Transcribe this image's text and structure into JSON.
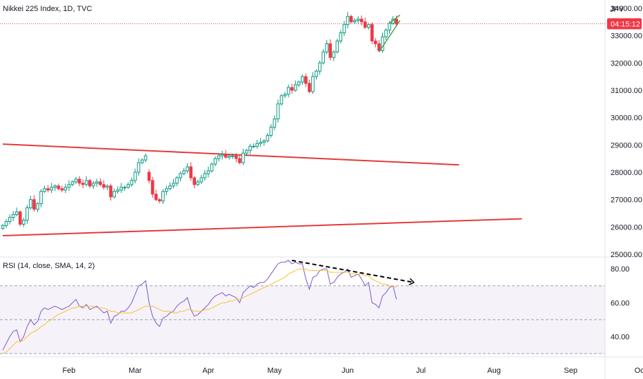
{
  "header": {
    "symbol_title": "Nikkei 225 Index, 1D, TVC",
    "currency": "JPY",
    "rsi_title": "RSI (14, close, SMA, 14, 2)"
  },
  "price_badge": {
    "value": "04:15:12",
    "level": 33430,
    "color": "#f23645"
  },
  "colors": {
    "up": "#089981",
    "down": "#f23645",
    "trendline": "#e53935",
    "wedge": "#43a047",
    "rsi_line": "#7e57c2",
    "rsi_ma": "#fbc02d",
    "rsi_band": "#7e57c2",
    "divergence": "#000000"
  },
  "chart_data": [
    {
      "type": "candlestick",
      "title": "Nikkei 225 Index, 1D, TVC",
      "ylim": [
        24900,
        34300
      ],
      "y_ticks": [
        "25000.00",
        "26000.00",
        "27000.00",
        "28000.00",
        "29000.00",
        "30000.00",
        "31000.00",
        "32000.00",
        "33000.00",
        "34000.00"
      ],
      "x_ticks": [
        "Feb",
        "Mar",
        "Apr",
        "May",
        "Jun",
        "Jul",
        "Aug",
        "Sep",
        "Oct"
      ],
      "candles_close": [
        26050,
        26200,
        26350,
        26450,
        26550,
        26100,
        26250,
        26700,
        27000,
        26650,
        26850,
        27300,
        27400,
        27350,
        27450,
        27500,
        27400,
        27350,
        27450,
        27550,
        27650,
        27750,
        27600,
        27550,
        27700,
        27500,
        27600,
        27650,
        27550,
        27450,
        27500,
        27100,
        27300,
        27350,
        27450,
        27450,
        27550,
        27700,
        28000,
        28350,
        28450,
        28600,
        27700,
        27200,
        27000,
        26950,
        27300,
        27400,
        27500,
        27600,
        27800,
        27950,
        28050,
        28200,
        27800,
        27550,
        27650,
        27800,
        27950,
        28050,
        28300,
        28500,
        28600,
        28650,
        28550,
        28600,
        28600,
        28500,
        28350,
        28700,
        28800,
        28950,
        28950,
        29050,
        29100,
        29150,
        29350,
        29650,
        29950,
        30500,
        30800,
        30850,
        31100,
        31000,
        31200,
        31300,
        31500,
        31250,
        30950,
        31500,
        31700,
        32000,
        32400,
        32700,
        32200,
        32400,
        32800,
        33100,
        33400,
        33700,
        33500,
        33550,
        33600,
        33500,
        33300,
        33400,
        32800,
        32700,
        32450,
        32950,
        33200,
        33450,
        33600,
        33420
      ],
      "candles_open": [
        25950,
        26050,
        26200,
        26350,
        26450,
        26550,
        26100,
        26250,
        26700,
        27000,
        26650,
        26850,
        27300,
        27400,
        27350,
        27450,
        27500,
        27400,
        27350,
        27450,
        27550,
        27650,
        27750,
        27600,
        27550,
        27700,
        27500,
        27600,
        27650,
        27550,
        27450,
        27500,
        27100,
        27300,
        27350,
        27450,
        27450,
        27550,
        27700,
        28000,
        28350,
        28450,
        28000,
        27700,
        27200,
        27000,
        26950,
        27300,
        27400,
        27500,
        27600,
        27800,
        27950,
        28050,
        28200,
        27800,
        27550,
        27650,
        27800,
        27950,
        28050,
        28300,
        28500,
        28600,
        28650,
        28550,
        28600,
        28600,
        28500,
        28350,
        28700,
        28800,
        28950,
        28950,
        29050,
        29100,
        29150,
        29350,
        29650,
        29950,
        30500,
        30800,
        30850,
        31100,
        31000,
        31200,
        31300,
        31500,
        31250,
        30950,
        31500,
        31700,
        32000,
        32400,
        32700,
        32200,
        32400,
        32800,
        33100,
        33400,
        33700,
        33500,
        33550,
        33600,
        33500,
        33300,
        33400,
        32800,
        32700,
        32450,
        32950,
        33200,
        33450,
        33600
      ],
      "annotations": [
        {
          "type": "trendline",
          "from": [
            0,
            29030
          ],
          "to": [
            131,
            28270
          ]
        },
        {
          "type": "trendline",
          "from": [
            0,
            25680
          ],
          "to": [
            149,
            26300
          ]
        },
        {
          "type": "wedge",
          "upper": [
            [
              111,
              33450
            ],
            [
              114,
              33750
            ]
          ],
          "lower": [
            [
              108,
              32400
            ],
            [
              114,
              33550
            ]
          ]
        }
      ]
    },
    {
      "type": "line",
      "title": "RSI (14, close, SMA, 14, 2)",
      "ylim": [
        28,
        87
      ],
      "y_ticks": [
        "40.00",
        "60.00",
        "80.00"
      ],
      "bands": {
        "upper": 70,
        "middle": 50,
        "lower": 30
      },
      "series": [
        {
          "values": [
            32,
            36,
            40,
            43,
            44,
            37,
            40,
            46,
            50,
            47,
            49,
            55,
            57,
            56,
            57,
            58,
            57,
            56,
            57,
            58,
            60,
            62,
            58,
            57,
            59,
            56,
            57,
            58,
            56,
            54,
            55,
            48,
            52,
            53,
            55,
            55,
            57,
            60,
            65,
            70,
            71,
            73,
            60,
            52,
            48,
            46,
            51,
            52,
            54,
            55,
            58,
            60,
            61,
            63,
            56,
            52,
            53,
            55,
            57,
            59,
            62,
            64,
            65,
            66,
            64,
            65,
            64,
            63,
            60,
            66,
            68,
            70,
            69,
            71,
            72,
            72,
            74,
            77,
            80,
            83,
            84,
            84,
            85,
            83,
            84,
            83,
            83,
            74,
            68,
            75,
            76,
            79,
            80,
            80,
            71,
            72,
            75,
            77,
            78,
            80,
            75,
            76,
            77,
            74,
            70,
            72,
            60,
            59,
            57,
            64,
            66,
            69,
            70,
            62
          ]
        },
        {
          "values": [
            30,
            31,
            33,
            35,
            37,
            37,
            38,
            40,
            42,
            43,
            44,
            46,
            47,
            49,
            50,
            52,
            53,
            54,
            55,
            56,
            57,
            57,
            58,
            58,
            58,
            58,
            58,
            57,
            57,
            57,
            56,
            55,
            55,
            54,
            54,
            54,
            54,
            54,
            55,
            56,
            57,
            58,
            58,
            58,
            57,
            56,
            55,
            55,
            55,
            54,
            54,
            55,
            55,
            56,
            56,
            55,
            55,
            55,
            56,
            56,
            57,
            58,
            59,
            60,
            60,
            61,
            61,
            62,
            62,
            63,
            64,
            65,
            66,
            67,
            68,
            69,
            70,
            71,
            72,
            73,
            74,
            75,
            77,
            78,
            79,
            80,
            80,
            80,
            79,
            79,
            79,
            79,
            79,
            79,
            78,
            78,
            78,
            78,
            78,
            78,
            77,
            77,
            77,
            77,
            76,
            76,
            74,
            73,
            72,
            71,
            71,
            70,
            70,
            69
          ]
        }
      ],
      "annotations": [
        {
          "type": "divergence-line",
          "from": [
            83,
            85
          ],
          "to": [
            118,
            72
          ]
        }
      ]
    }
  ]
}
